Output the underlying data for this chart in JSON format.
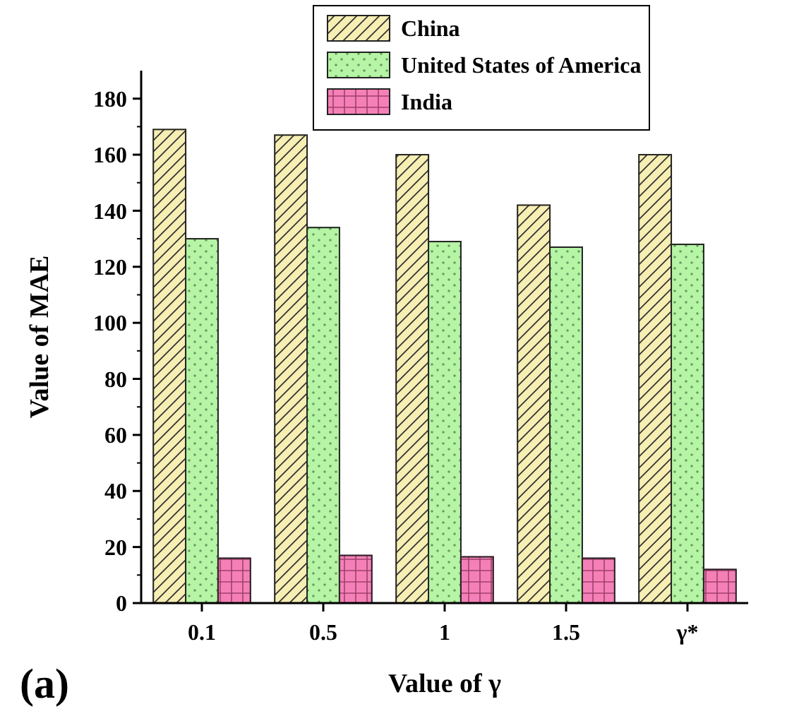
{
  "chart_data": {
    "type": "bar",
    "xlabel": "Value of γ",
    "ylabel": "Value of MAE",
    "categories": [
      "0.1",
      "0.5",
      "1",
      "1.5",
      "γ*"
    ],
    "series": [
      {
        "name": "China",
        "color": "#f7eeb4",
        "values": [
          169,
          167,
          160,
          142,
          160
        ]
      },
      {
        "name": "United States of America",
        "color": "#b5f5a5",
        "values": [
          130,
          134,
          129,
          127,
          128
        ]
      },
      {
        "name": "India",
        "color": "#f580b8",
        "values": [
          16,
          17,
          16.5,
          16,
          12
        ]
      }
    ],
    "ylim": [
      0,
      190
    ],
    "yticks": [
      0,
      20,
      40,
      60,
      80,
      100,
      120,
      140,
      160,
      180
    ],
    "grid": false,
    "legend": "top right",
    "annotations": [
      "(a)"
    ]
  }
}
